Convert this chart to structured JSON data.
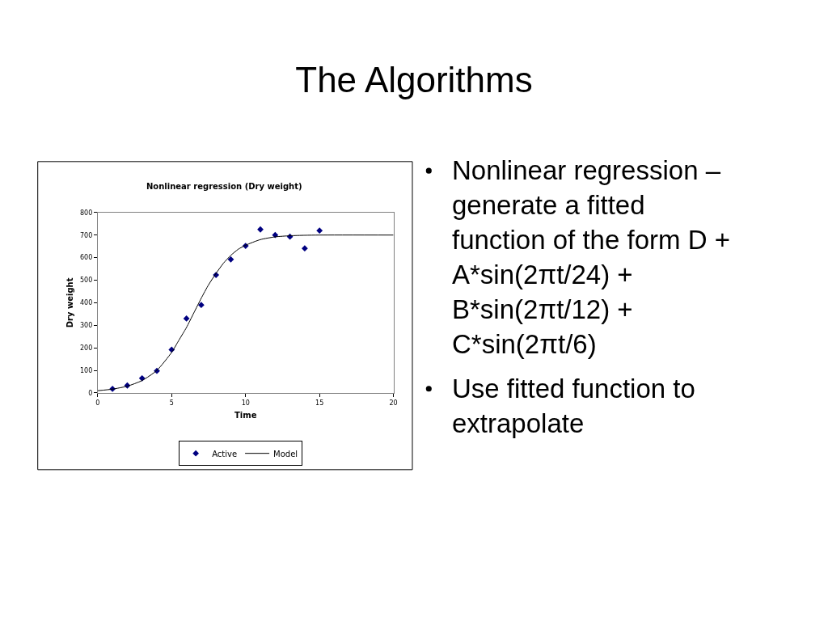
{
  "chart_data": {
    "type": "scatter",
    "title": "The Algorithms",
    "subtitle": "Nonlinear regression (Dry weight)",
    "xlabel": "Time",
    "ylabel": "Dry weight",
    "annotations": [
      "Nonlinear regression – generate a fitted function of the form D + A*sin(2πt/24) + B*sin(2πt/12) + C*sin(2πt/6)",
      "Use fitted function to extrapolate"
    ],
    "xlim": [
      0,
      20
    ],
    "xticks": [
      0,
      5,
      10,
      15,
      20
    ],
    "ylim": [
      0,
      800
    ],
    "yticks": [
      0,
      100,
      200,
      300,
      400,
      500,
      600,
      700,
      800
    ],
    "grid": false,
    "legend": "bottom",
    "series": [
      {
        "name": "Active",
        "type": "scatter",
        "marker": "diamond",
        "color": "#000080",
        "x": [
          1,
          2,
          3,
          4,
          5,
          6,
          7,
          8,
          9,
          10,
          11,
          12,
          13,
          14,
          15
        ],
        "values": [
          18,
          33,
          65,
          98,
          192,
          330,
          390,
          523,
          592,
          652,
          725,
          700,
          693,
          641,
          720
        ]
      },
      {
        "name": "Model",
        "type": "line",
        "marker": "none",
        "color": "#000000",
        "line_style": "solid",
        "x": [
          0,
          1,
          2,
          3,
          4,
          5,
          5.5,
          6,
          6.5,
          7,
          7.5,
          8,
          8.5,
          9,
          9.5,
          10,
          11,
          12,
          13,
          14,
          15,
          20
        ],
        "values": [
          10,
          17,
          30,
          55,
          100,
          180,
          235,
          290,
          355,
          420,
          480,
          530,
          575,
          610,
          637,
          655,
          680,
          692,
          697,
          699,
          700,
          700
        ]
      }
    ]
  }
}
